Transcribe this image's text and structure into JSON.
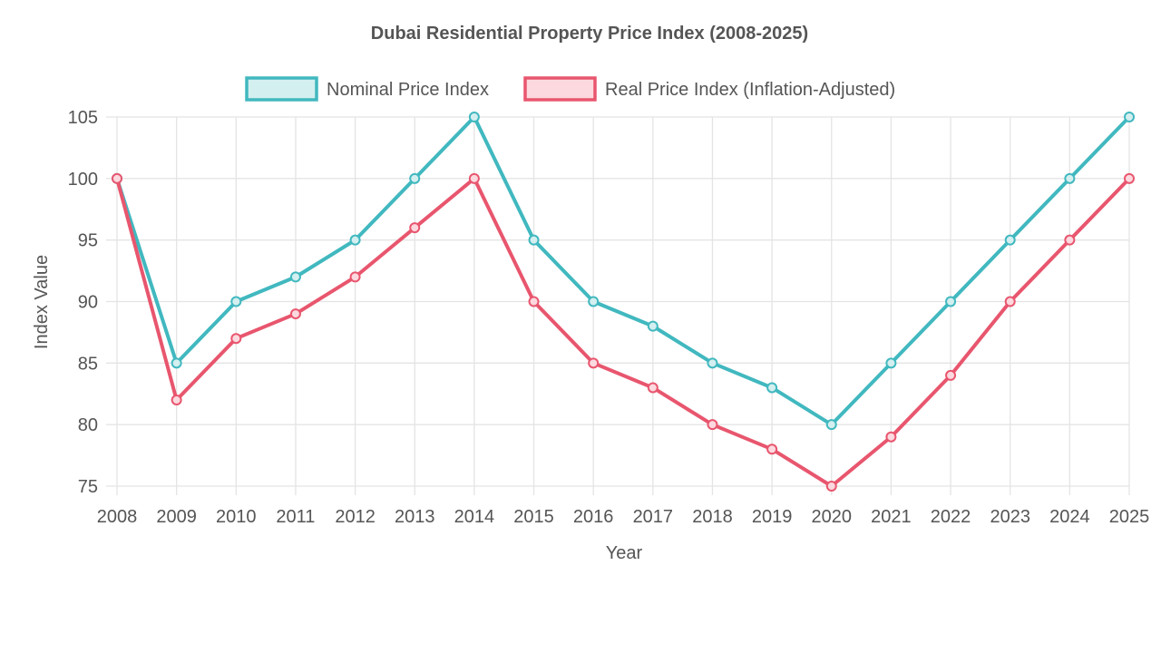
{
  "chart_data": {
    "type": "line",
    "title": "Dubai Residential Property Price Index (2008-2025)",
    "xlabel": "Year",
    "ylabel": "Index Value",
    "categories": [
      "2008",
      "2009",
      "2010",
      "2011",
      "2012",
      "2013",
      "2014",
      "2015",
      "2016",
      "2017",
      "2018",
      "2019",
      "2020",
      "2021",
      "2022",
      "2023",
      "2024",
      "2025"
    ],
    "ylim": [
      75,
      105
    ],
    "yticks": [
      75,
      80,
      85,
      90,
      95,
      100,
      105
    ],
    "grid": true,
    "legend_position": "top-center",
    "series": [
      {
        "name": "Nominal Price Index",
        "color": "#41b8bf",
        "fill": "#d4eff0",
        "values": [
          100,
          85,
          90,
          92,
          95,
          100,
          105,
          95,
          90,
          88,
          85,
          83,
          80,
          85,
          90,
          95,
          100,
          105
        ]
      },
      {
        "name": "Real Price Index (Inflation-Adjusted)",
        "color": "#e8566e",
        "fill": "#fcd9df",
        "values": [
          100,
          82,
          87,
          89,
          92,
          96,
          100,
          90,
          85,
          83,
          80,
          78,
          75,
          79,
          84,
          90,
          95,
          100
        ]
      }
    ]
  }
}
